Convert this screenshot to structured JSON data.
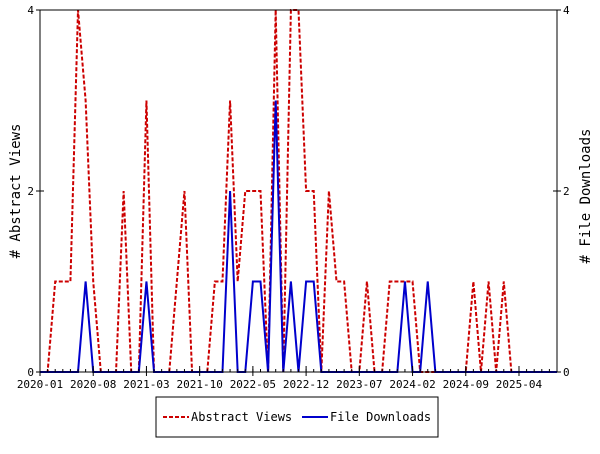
{
  "chart_data": {
    "type": "line",
    "xlabel": "",
    "ylabel_left": "# Abstract Views",
    "ylabel_right": "# File Downloads",
    "ylim": [
      0,
      4
    ],
    "xlim": [
      "2020-01",
      "2025-09"
    ],
    "x_ticks": [
      "2020-01",
      "2020-08",
      "2021-03",
      "2021-10",
      "2022-05",
      "2022-12",
      "2023-07",
      "2024-02",
      "2024-09",
      "2025-04"
    ],
    "y_ticks_left": [
      0,
      2,
      4
    ],
    "y_ticks_right": [
      0,
      2,
      4
    ],
    "x": [
      "2020-01",
      "2020-02",
      "2020-03",
      "2020-04",
      "2020-05",
      "2020-06",
      "2020-07",
      "2020-08",
      "2020-09",
      "2020-10",
      "2020-11",
      "2020-12",
      "2021-01",
      "2021-02",
      "2021-03",
      "2021-04",
      "2021-05",
      "2021-06",
      "2021-07",
      "2021-08",
      "2021-09",
      "2021-10",
      "2021-11",
      "2021-12",
      "2022-01",
      "2022-02",
      "2022-03",
      "2022-04",
      "2022-05",
      "2022-06",
      "2022-07",
      "2022-08",
      "2022-09",
      "2022-10",
      "2022-11",
      "2022-12",
      "2023-01",
      "2023-02",
      "2023-03",
      "2023-04",
      "2023-05",
      "2023-06",
      "2023-07",
      "2023-08",
      "2023-09",
      "2023-10",
      "2023-11",
      "2023-12",
      "2024-01",
      "2024-02",
      "2024-03",
      "2024-04",
      "2024-05",
      "2024-06",
      "2024-07",
      "2024-08",
      "2024-09",
      "2024-10",
      "2024-11",
      "2024-12",
      "2025-01",
      "2025-02",
      "2025-03",
      "2025-04",
      "2025-05",
      "2025-06",
      "2025-07",
      "2025-08",
      "2025-09"
    ],
    "series": [
      {
        "name": "Abstract Views",
        "color": "#cc0000",
        "dash": "dashed",
        "axis": "left",
        "values": [
          0,
          0,
          1,
          1,
          1,
          4,
          3,
          1,
          0,
          0,
          0,
          2,
          0,
          0,
          3,
          0,
          0,
          0,
          1,
          2,
          0,
          0,
          0,
          1,
          1,
          3,
          1,
          2,
          2,
          2,
          0,
          4,
          0,
          4,
          4,
          2,
          2,
          0,
          2,
          1,
          1,
          0,
          0,
          1,
          0,
          0,
          1,
          1,
          1,
          1,
          0,
          0,
          0,
          0,
          0,
          0,
          0,
          1,
          0,
          1,
          0,
          1,
          0,
          0,
          0,
          0,
          0,
          0,
          0
        ]
      },
      {
        "name": "File Downloads",
        "color": "#0000cc",
        "dash": "solid",
        "axis": "right",
        "values": [
          0,
          0,
          0,
          0,
          0,
          0,
          1,
          0,
          0,
          0,
          0,
          0,
          0,
          0,
          1,
          0,
          0,
          0,
          0,
          0,
          0,
          0,
          0,
          0,
          0,
          2,
          0,
          0,
          1,
          1,
          0,
          3,
          0,
          1,
          0,
          1,
          1,
          0,
          0,
          0,
          0,
          0,
          0,
          0,
          0,
          0,
          0,
          0,
          1,
          0,
          0,
          1,
          0,
          0,
          0,
          0,
          0,
          0,
          0,
          0,
          0,
          0,
          0,
          0,
          0,
          0,
          0,
          0,
          0
        ]
      }
    ],
    "legend_position": "bottom-center",
    "grid": false
  }
}
